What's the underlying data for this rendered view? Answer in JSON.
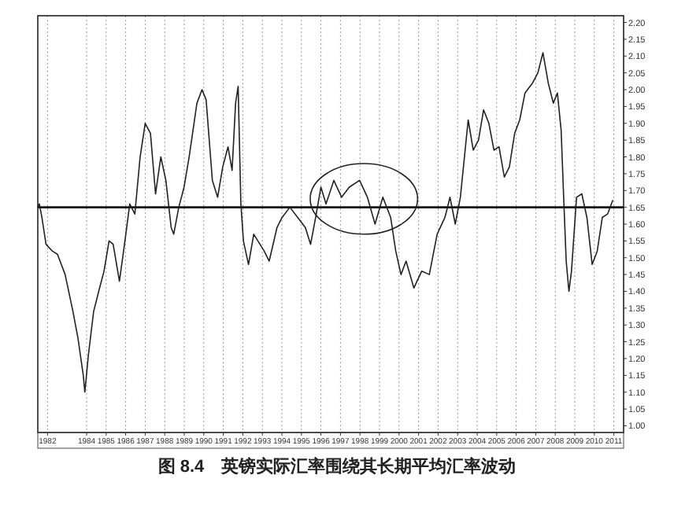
{
  "chart_data": {
    "type": "line",
    "title": "图 8.4　英镑实际汇率围绕其长期平均汇率波动",
    "color": "#222222",
    "line_style": "solid",
    "grid": "x",
    "x": [
      1982.0,
      1982.08,
      1982.21,
      1982.42,
      1982.74,
      1983.01,
      1983.4,
      1983.8,
      1984.06,
      1984.33,
      1984.41,
      1984.59,
      1984.86,
      1985.12,
      1985.39,
      1985.65,
      1985.86,
      1986.18,
      1986.44,
      1986.71,
      1986.97,
      1987.24,
      1987.5,
      1987.77,
      1988.03,
      1988.3,
      1988.56,
      1988.83,
      1988.96,
      1989.22,
      1989.49,
      1989.75,
      1990.15,
      1990.41,
      1990.62,
      1990.94,
      1991.21,
      1991.47,
      1991.74,
      1991.95,
      1992.13,
      1992.26,
      1992.4,
      1992.53,
      1992.79,
      1993.06,
      1993.59,
      1993.85,
      1994.25,
      1994.51,
      1994.91,
      1995.31,
      1995.7,
      1995.97,
      1996.23,
      1996.5,
      1996.76,
      1997.16,
      1997.56,
      1997.95,
      1998.48,
      1998.88,
      1999.27,
      1999.67,
      2000.07,
      2000.33,
      2000.6,
      2000.86,
      2001.26,
      2001.66,
      2002.05,
      2002.45,
      2002.85,
      2003.11,
      2003.38,
      2003.64,
      2004.04,
      2004.3,
      2004.57,
      2004.83,
      2005.1,
      2005.36,
      2005.62,
      2005.89,
      2006.15,
      2006.42,
      2006.68,
      2006.95,
      2007.34,
      2007.61,
      2007.87,
      2008.14,
      2008.4,
      2008.61,
      2008.8,
      2008.93,
      2009.06,
      2009.2,
      2009.33,
      2009.59,
      2009.86,
      2010.12,
      2010.39,
      2010.65,
      2010.91,
      2011.18,
      2011.44
    ],
    "values": [
      1.65,
      1.66,
      1.62,
      1.54,
      1.52,
      1.51,
      1.45,
      1.34,
      1.26,
      1.15,
      1.1,
      1.21,
      1.34,
      1.4,
      1.46,
      1.55,
      1.54,
      1.43,
      1.54,
      1.66,
      1.63,
      1.8,
      1.9,
      1.87,
      1.69,
      1.8,
      1.73,
      1.59,
      1.57,
      1.65,
      1.71,
      1.8,
      1.96,
      2.0,
      1.97,
      1.73,
      1.68,
      1.77,
      1.83,
      1.76,
      1.96,
      2.01,
      1.66,
      1.55,
      1.48,
      1.57,
      1.52,
      1.49,
      1.59,
      1.62,
      1.65,
      1.62,
      1.59,
      1.54,
      1.62,
      1.71,
      1.66,
      1.73,
      1.68,
      1.71,
      1.73,
      1.68,
      1.6,
      1.68,
      1.62,
      1.52,
      1.45,
      1.49,
      1.41,
      1.46,
      1.45,
      1.57,
      1.62,
      1.68,
      1.6,
      1.68,
      1.91,
      1.82,
      1.85,
      1.94,
      1.9,
      1.82,
      1.83,
      1.74,
      1.77,
      1.87,
      1.91,
      1.99,
      2.02,
      2.05,
      2.11,
      2.02,
      1.96,
      1.99,
      1.88,
      1.68,
      1.49,
      1.4,
      1.46,
      1.68,
      1.69,
      1.62,
      1.48,
      1.52,
      1.62,
      1.63,
      1.67
    ],
    "xlim": [
      1982,
      2012
    ],
    "ylim": [
      0.98,
      2.22
    ],
    "xticks": [
      {
        "value": 1982.5,
        "label": "1982"
      },
      {
        "value": 1984.5,
        "label": "1984"
      },
      {
        "value": 1985.5,
        "label": "1985"
      },
      {
        "value": 1986.5,
        "label": "1986"
      },
      {
        "value": 1987.5,
        "label": "1987"
      },
      {
        "value": 1988.5,
        "label": "1988"
      },
      {
        "value": 1989.5,
        "label": "1989"
      },
      {
        "value": 1990.5,
        "label": "1990"
      },
      {
        "value": 1991.5,
        "label": "1991"
      },
      {
        "value": 1992.5,
        "label": "1992"
      },
      {
        "value": 1993.5,
        "label": "1993"
      },
      {
        "value": 1994.5,
        "label": "1994"
      },
      {
        "value": 1995.5,
        "label": "1995"
      },
      {
        "value": 1996.5,
        "label": "1996"
      },
      {
        "value": 1997.5,
        "label": "1997"
      },
      {
        "value": 1998.5,
        "label": "1998"
      },
      {
        "value": 1999.5,
        "label": "1999"
      },
      {
        "value": 2000.5,
        "label": "2000"
      },
      {
        "value": 2001.5,
        "label": "2001"
      },
      {
        "value": 2002.5,
        "label": "2002"
      },
      {
        "value": 2003.5,
        "label": "2003"
      },
      {
        "value": 2004.5,
        "label": "2004"
      },
      {
        "value": 2005.5,
        "label": "2005"
      },
      {
        "value": 2006.5,
        "label": "2006"
      },
      {
        "value": 2007.5,
        "label": "2007"
      },
      {
        "value": 2008.5,
        "label": "2008"
      },
      {
        "value": 2009.5,
        "label": "2009"
      },
      {
        "value": 2010.5,
        "label": "2010"
      },
      {
        "value": 2011.5,
        "label": "2011"
      }
    ],
    "yticks": [
      {
        "value": 1.0,
        "label": "1.00"
      },
      {
        "value": 1.05,
        "label": "1.05"
      },
      {
        "value": 1.1,
        "label": "1.10"
      },
      {
        "value": 1.15,
        "label": "1.15"
      },
      {
        "value": 1.2,
        "label": "1.20"
      },
      {
        "value": 1.25,
        "label": "1.25"
      },
      {
        "value": 1.3,
        "label": "1.30"
      },
      {
        "value": 1.35,
        "label": "1.35"
      },
      {
        "value": 1.4,
        "label": "1.40"
      },
      {
        "value": 1.45,
        "label": "1.45"
      },
      {
        "value": 1.5,
        "label": "1.50"
      },
      {
        "value": 1.55,
        "label": "1.55"
      },
      {
        "value": 1.6,
        "label": "1.60"
      },
      {
        "value": 1.65,
        "label": "1.65"
      },
      {
        "value": 1.7,
        "label": "1.70"
      },
      {
        "value": 1.75,
        "label": "1.75"
      },
      {
        "value": 1.8,
        "label": "1.80"
      },
      {
        "value": 1.85,
        "label": "1.85"
      },
      {
        "value": 1.9,
        "label": "1.90"
      },
      {
        "value": 1.95,
        "label": "1.95"
      },
      {
        "value": 2.0,
        "label": "2.00"
      },
      {
        "value": 2.05,
        "label": "2.05"
      },
      {
        "value": 2.1,
        "label": "2.10"
      },
      {
        "value": 2.15,
        "label": "2.15"
      },
      {
        "value": 2.2,
        "label": "2.20"
      }
    ],
    "ref_lines": [
      {
        "axis": "y",
        "value": 1.65,
        "color": "#111111"
      }
    ]
  }
}
